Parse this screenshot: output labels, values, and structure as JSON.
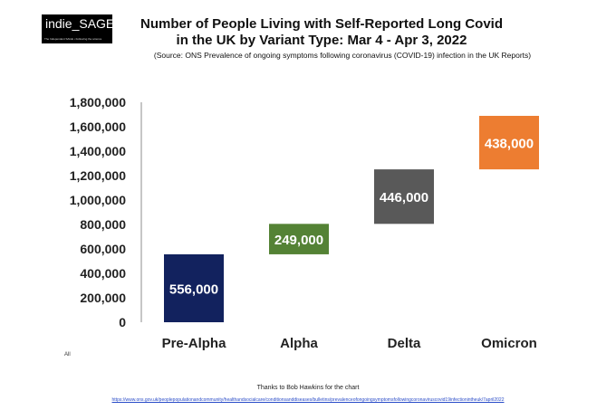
{
  "logo": {
    "name": "indie_SAGE",
    "tagline": "The Independent SAGE • Following the science"
  },
  "chart_data": {
    "type": "bar",
    "subtype": "waterfall",
    "title_line1": "Number of People Living with Self-Reported Long Covid",
    "title_line2": "in the UK by Variant Type: Mar 4 - Apr 3, 2022",
    "subtitle": "(Source: ONS Prevalence of ongoing symptoms following coronavirus (COVID-19) infection in the UK Reports)",
    "categories": [
      "Pre-Alpha",
      "Alpha",
      "Delta",
      "Omicron"
    ],
    "values": [
      556000,
      249000,
      446000,
      438000
    ],
    "labels": [
      "556,000",
      "249,000",
      "446,000",
      "438,000"
    ],
    "colors": [
      "#12225e",
      "#548235",
      "#595959",
      "#ed7d31"
    ],
    "ylim": [
      0,
      1800000
    ],
    "yticks": [
      "0",
      "200,000",
      "400,000",
      "600,000",
      "800,000",
      "1,000,000",
      "1,200,000",
      "1,400,000",
      "1,600,000",
      "1,800,000"
    ],
    "grid": false
  },
  "footer": {
    "all_note": "All",
    "credit": "Thanks to Bob Hawkins for the chart",
    "link": "https://www.ons.gov.uk/peoplepopulationandcommunity/healthandsocialcare/conditionsanddiseases/bulletins/prevalenceofongoingsymptomsfollowingcoronaviruscovid19infectionintheuk/7april2022"
  }
}
